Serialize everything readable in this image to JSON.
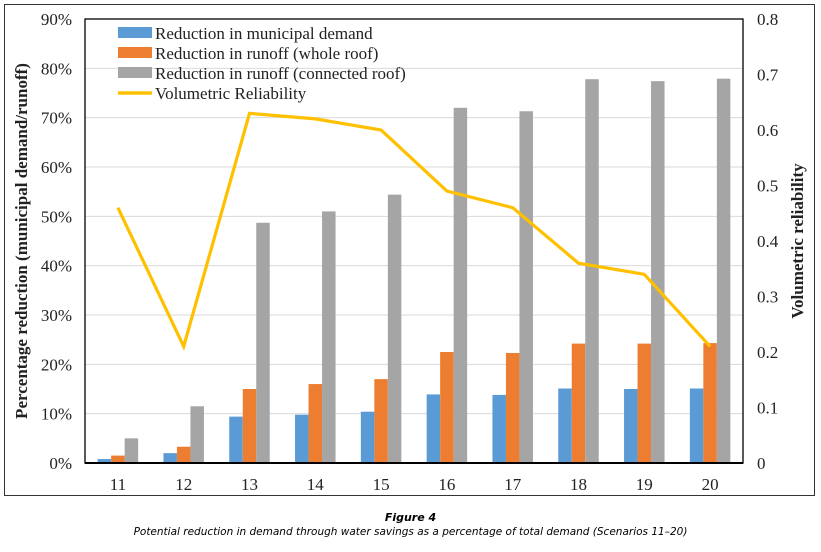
{
  "caption": {
    "figure_label": "Figure 4",
    "text": "Potential reduction in demand through water savings as a percentage of total demand (Scenarios 11–20)"
  },
  "chart_data": {
    "type": "bar",
    "categories": [
      "11",
      "12",
      "13",
      "14",
      "15",
      "16",
      "17",
      "18",
      "19",
      "20"
    ],
    "series": [
      {
        "name": "Reduction in municipal demand",
        "type": "bar",
        "axis": "left",
        "color": "#5B9BD5",
        "values": [
          0.8,
          2.0,
          9.4,
          9.8,
          10.4,
          13.9,
          13.8,
          15.1,
          15.0,
          15.1
        ]
      },
      {
        "name": "Reduction in runoff (whole roof)",
        "type": "bar",
        "axis": "left",
        "color": "#ED7D31",
        "values": [
          1.5,
          3.3,
          15.0,
          16.0,
          17.0,
          22.5,
          22.3,
          24.2,
          24.2,
          24.3
        ]
      },
      {
        "name": "Reduction in runoff (connected roof)",
        "type": "bar",
        "axis": "left",
        "color": "#A5A5A5",
        "values": [
          5.0,
          11.5,
          48.7,
          51.0,
          54.4,
          72.0,
          71.3,
          77.8,
          77.4,
          77.9
        ]
      },
      {
        "name": "Volumetric Reliability",
        "type": "line",
        "axis": "right",
        "color": "#FFC000",
        "values": [
          0.46,
          0.21,
          0.63,
          0.62,
          0.6,
          0.49,
          0.46,
          0.36,
          0.34,
          0.21
        ]
      }
    ],
    "ylabel": "Percentage reduction (municipal demand/runoff)",
    "y2label": "Volumetric reliability",
    "xlabel": "",
    "ylim": [
      0,
      90
    ],
    "y2lim": [
      0,
      0.8
    ],
    "yticks": [
      "0%",
      "10%",
      "20%",
      "30%",
      "40%",
      "50%",
      "60%",
      "70%",
      "80%",
      "90%"
    ],
    "y2ticks": [
      "0",
      "0.1",
      "0.2",
      "0.3",
      "0.4",
      "0.5",
      "0.6",
      "0.7",
      "0.8"
    ],
    "grid": true,
    "legend_position": "top-left"
  }
}
